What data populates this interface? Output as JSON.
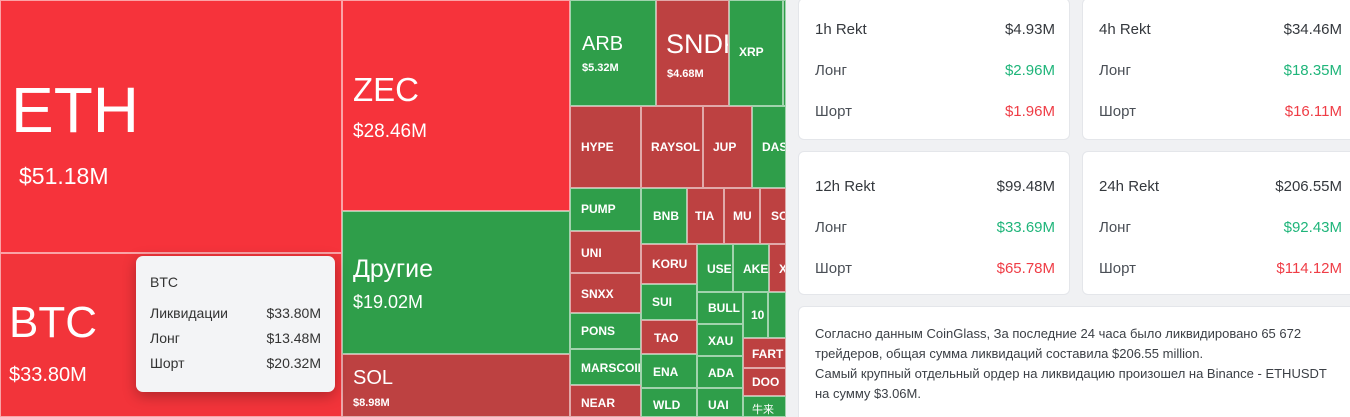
{
  "treemap": {
    "eth": {
      "symbol": "ETH",
      "value": "$51.18M"
    },
    "btc": {
      "symbol": "BTC",
      "value": "$33.80M"
    },
    "zec": {
      "symbol": "ZEC",
      "value": "$28.46M"
    },
    "others": {
      "symbol": "Другие",
      "value": "$19.02M"
    },
    "sol": {
      "symbol": "SOL",
      "value": "$8.98M"
    },
    "arb": {
      "symbol": "ARB",
      "value": "$5.32M"
    },
    "sndk": {
      "symbol": "SNDK",
      "value": "$4.68M"
    },
    "small": [
      "XRP",
      "HYPE",
      "RAYSOL",
      "JUP",
      "DAS",
      "PUMP",
      "BNB",
      "TIA",
      "MU",
      "SO",
      "UNI",
      "KORU",
      "USE",
      "AKE",
      "X",
      "SNXX",
      "SUI",
      "BULL",
      "10",
      "PONS",
      "TAO",
      "XAU",
      "FART",
      "MARSCOIN",
      "ENA",
      "ADA",
      "DOO",
      "NEAR",
      "WLD",
      "UAI",
      "牛来"
    ]
  },
  "tooltip": {
    "title": "BTC",
    "rows": [
      {
        "label": "Ликвидации",
        "value": "$33.80M"
      },
      {
        "label": "Лонг",
        "value": "$13.48M"
      },
      {
        "label": "Шорт",
        "value": "$20.32M"
      }
    ]
  },
  "stats": [
    {
      "period": "1h Rekt",
      "total": "$4.93M",
      "long_label": "Лонг",
      "long": "$2.96M",
      "short_label": "Шорт",
      "short": "$1.96M"
    },
    {
      "period": "4h Rekt",
      "total": "$34.46M",
      "long_label": "Лонг",
      "long": "$18.35M",
      "short_label": "Шорт",
      "short": "$16.11M"
    },
    {
      "period": "12h Rekt",
      "total": "$99.48M",
      "long_label": "Лонг",
      "long": "$33.69M",
      "short_label": "Шорт",
      "short": "$65.78M"
    },
    {
      "period": "24h Rekt",
      "total": "$206.55M",
      "long_label": "Лонг",
      "long": "$92.43M",
      "short_label": "Шорт",
      "short": "$114.12M"
    }
  ],
  "info": {
    "line1": "Согласно данным CoinGlass, За последние 24 часа было ликвидировано 65 672 трейдеров, общая сумма ликвидаций составила $206.55 million.",
    "line2": "Самый крупный отдельный ордер на ликвидацию произошел на Binance - ETHUSDT на сумму $3.06M."
  },
  "colors": {
    "long": "#1fb57a",
    "short": "#ef3d46",
    "tile_red": "#f6333b",
    "tile_green": "#2f9e4a",
    "tile_dark_red": "#bd4141"
  }
}
